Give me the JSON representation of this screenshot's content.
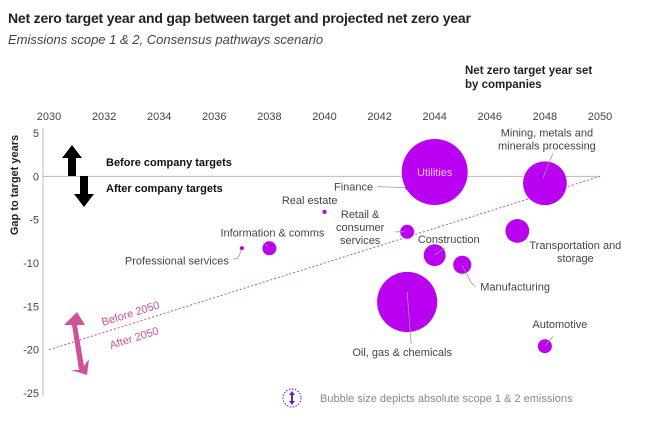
{
  "chart_data": {
    "type": "scatter",
    "title": "Net zero target year and gap between target and projected net zero year",
    "subtitle": "Emissions scope 1 & 2, Consensus pathways scenario",
    "xlabel": "Net zero target year set by companies",
    "ylabel": "Gap to target years",
    "xlim": [
      2030,
      2050
    ],
    "ylim": [
      -25,
      5
    ],
    "xticks": [
      "2030",
      "2032",
      "2034",
      "2036",
      "2038",
      "2040",
      "2042",
      "2044",
      "2046",
      "2048",
      "2050"
    ],
    "yticks": [
      "5",
      "0",
      "-5",
      "-10",
      "-15",
      "-20",
      "-25"
    ],
    "bubble_color": "#b900f0",
    "points": [
      {
        "name": "Utilities",
        "x": 2044,
        "y": 0.5,
        "size": 100
      },
      {
        "name": "Mining, metals and minerals processing",
        "x": 2048,
        "y": -0.8,
        "size": 44
      },
      {
        "name": "Finance",
        "x": 2043,
        "y": -1.3,
        "size": 0.4
      },
      {
        "name": "Real estate",
        "x": 2040,
        "y": -4.1,
        "size": 0.4
      },
      {
        "name": "Retail & consumer services",
        "x": 2043,
        "y": -6.4,
        "size": 4.5
      },
      {
        "name": "Transportation and storage",
        "x": 2047,
        "y": -6.3,
        "size": 13
      },
      {
        "name": "Information & comms",
        "x": 2038,
        "y": -8.3,
        "size": 4.5
      },
      {
        "name": "Professional services",
        "x": 2037,
        "y": -8.3,
        "size": 0.4
      },
      {
        "name": "Construction",
        "x": 2044,
        "y": -9.1,
        "size": 11
      },
      {
        "name": "Manufacturing",
        "x": 2045,
        "y": -10.2,
        "size": 7.5
      },
      {
        "name": "Oil, gas & chemicals",
        "x": 2043,
        "y": -14.5,
        "size": 83
      },
      {
        "name": "Automotive",
        "x": 2048,
        "y": -19.6,
        "size": 4.5
      }
    ],
    "reference_line": {
      "label_above": "Before 2050",
      "label_below": "After 2050",
      "from": [
        2030,
        -20
      ],
      "to": [
        2050,
        0
      ],
      "color": "#d0509a"
    },
    "annotations": {
      "above_zero": "Before company targets",
      "below_zero": "After company targets"
    },
    "legend_note": "Bubble size depicts absolute scope 1 & 2 emissions"
  }
}
